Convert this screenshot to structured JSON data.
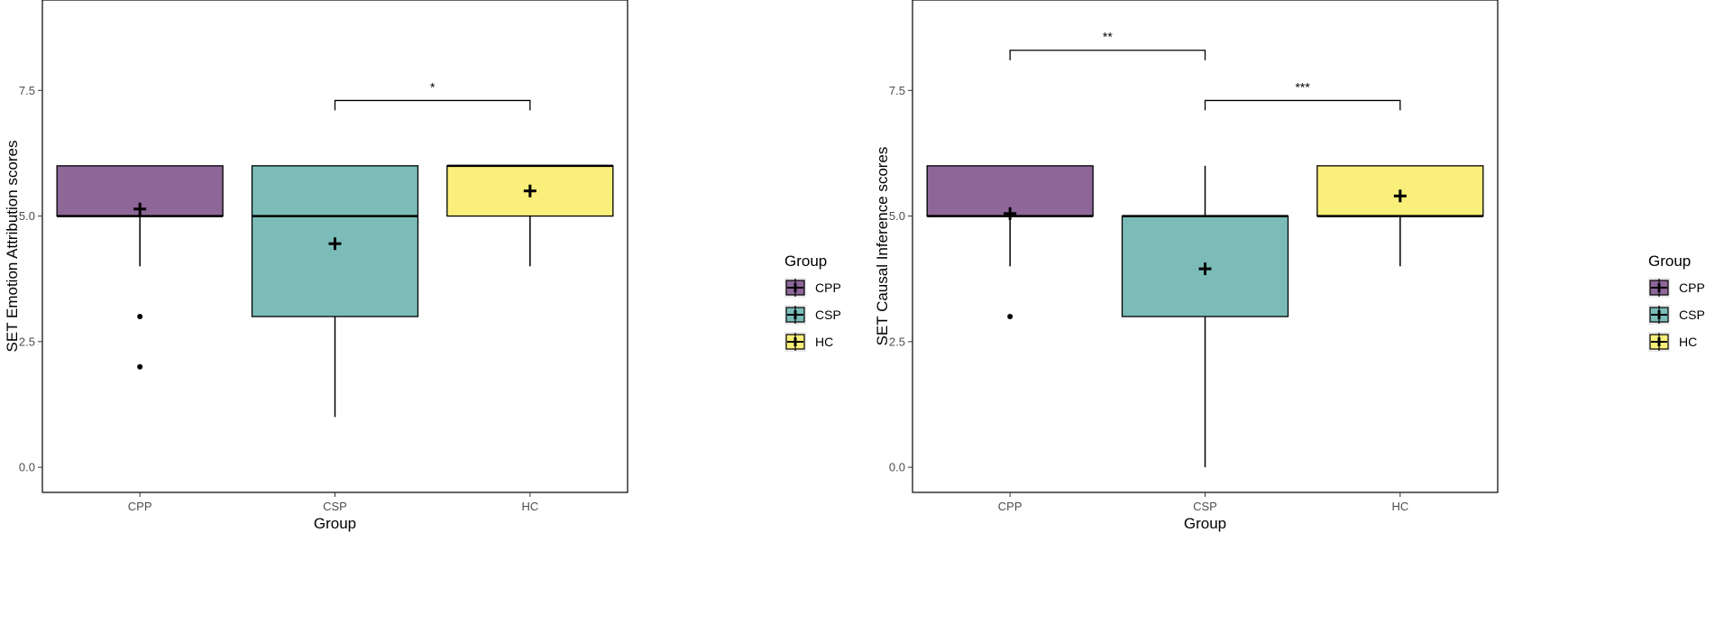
{
  "chart_data": [
    {
      "type": "box",
      "xlabel": "Group",
      "ylabel": "SET Emotion Attribution scores",
      "categories": [
        "CPP",
        "CSP",
        "HC"
      ],
      "ylim": [
        -0.5,
        9.3
      ],
      "yticks": [
        0.0,
        2.5,
        5.0,
        7.5
      ],
      "ytick_labels": [
        "0.0",
        "2.5",
        "5.0",
        "7.5"
      ],
      "grid": false,
      "legend": {
        "title": "Group",
        "placement": "right",
        "entries": [
          "CPP",
          "CSP",
          "HC"
        ]
      },
      "boxes": [
        {
          "group": "CPP",
          "min": 4,
          "q1": 5,
          "median": 5,
          "q3": 6,
          "max": 6,
          "mean": 5.14,
          "outliers": [
            3,
            2
          ]
        },
        {
          "group": "CSP",
          "min": 1,
          "q1": 3,
          "median": 5,
          "q3": 6,
          "max": 6,
          "mean": 4.45,
          "outliers": []
        },
        {
          "group": "HC",
          "min": 4,
          "q1": 5,
          "median": 6,
          "q3": 6,
          "max": 6,
          "mean": 5.5,
          "outliers": []
        }
      ],
      "significance": [
        {
          "from": "CSP",
          "to": "HC",
          "y": 7.3,
          "label": "*"
        }
      ]
    },
    {
      "type": "box",
      "xlabel": "Group",
      "ylabel": "SET Causal Inference scores",
      "categories": [
        "CPP",
        "CSP",
        "HC"
      ],
      "ylim": [
        -0.5,
        9.3
      ],
      "yticks": [
        0.0,
        2.5,
        5.0,
        7.5
      ],
      "ytick_labels": [
        "0.0",
        "2.5",
        "5.0",
        "7.5"
      ],
      "grid": false,
      "legend": {
        "title": "Group",
        "placement": "right",
        "entries": [
          "CPP",
          "CSP",
          "HC"
        ]
      },
      "boxes": [
        {
          "group": "CPP",
          "min": 4,
          "q1": 5,
          "median": 5,
          "q3": 6,
          "max": 6,
          "mean": 5.05,
          "outliers": [
            3
          ]
        },
        {
          "group": "CSP",
          "min": 0,
          "q1": 3,
          "median": 5,
          "q3": 5,
          "max": 6,
          "mean": 3.95,
          "outliers": []
        },
        {
          "group": "HC",
          "min": 4,
          "q1": 5,
          "median": 5,
          "q3": 6,
          "max": 6,
          "mean": 5.4,
          "outliers": []
        }
      ],
      "significance": [
        {
          "from": "CPP",
          "to": "CSP",
          "y": 8.3,
          "label": "**"
        },
        {
          "from": "CSP",
          "to": "HC",
          "y": 7.3,
          "label": "***"
        }
      ]
    }
  ],
  "colors": {
    "CPP": "#8e6698",
    "CSP": "#7bbcb8",
    "HC": "#fbef7b"
  }
}
